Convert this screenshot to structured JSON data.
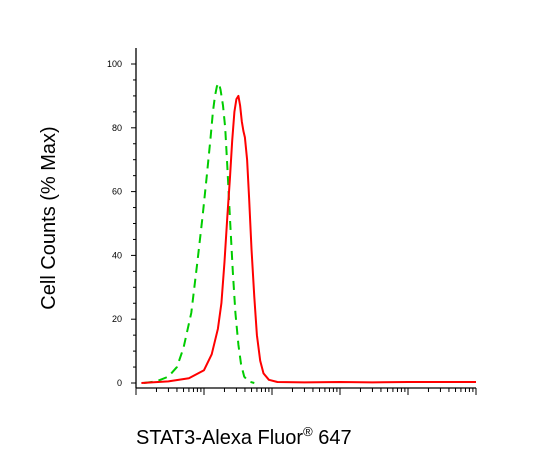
{
  "chart_data": {
    "type": "line",
    "title": "",
    "xlabel": "STAT3-Alexa Fluor",
    "xlabel_superscript": "®",
    "xlabel_suffix": " 647",
    "ylabel": "Cell Counts (% Max)",
    "xscale": "log",
    "xlim": [
      1,
      100000
    ],
    "ylim": [
      0,
      100
    ],
    "yticks": [
      "0",
      "20",
      "40",
      "60",
      "80",
      "100"
    ],
    "grid": false,
    "legend": "none",
    "series": [
      {
        "color": "#00cc00",
        "style": "dashed",
        "points": [
          [
            1.3,
            0
          ],
          [
            2,
            0.5
          ],
          [
            3,
            2
          ],
          [
            4,
            5
          ],
          [
            5,
            11
          ],
          [
            6.5,
            22
          ],
          [
            8,
            38
          ],
          [
            9.5,
            52
          ],
          [
            11,
            65
          ],
          [
            12.5,
            77
          ],
          [
            13.5,
            85
          ],
          [
            14.5,
            90
          ],
          [
            15.5,
            93
          ],
          [
            16.5,
            94
          ],
          [
            17.5,
            92
          ],
          [
            19,
            87
          ],
          [
            20.5,
            80
          ],
          [
            22,
            68
          ],
          [
            24,
            52
          ],
          [
            26.5,
            35
          ],
          [
            29,
            22
          ],
          [
            32,
            12
          ],
          [
            35,
            6
          ],
          [
            39,
            2
          ],
          [
            45,
            0.5
          ],
          [
            55,
            0
          ]
        ]
      },
      {
        "color": "#ff0000",
        "style": "solid",
        "points": [
          [
            1.2,
            0
          ],
          [
            3,
            0.5
          ],
          [
            6,
            1.5
          ],
          [
            10,
            4
          ],
          [
            13,
            9
          ],
          [
            16,
            17
          ],
          [
            18,
            25
          ],
          [
            20,
            38
          ],
          [
            22,
            52
          ],
          [
            24,
            64
          ],
          [
            26,
            76
          ],
          [
            28,
            85
          ],
          [
            30,
            89
          ],
          [
            32,
            90
          ],
          [
            34,
            87
          ],
          [
            36,
            82
          ],
          [
            38,
            79
          ],
          [
            40,
            77
          ],
          [
            43,
            70
          ],
          [
            46,
            58
          ],
          [
            50,
            42
          ],
          [
            55,
            27
          ],
          [
            60,
            15
          ],
          [
            67,
            7
          ],
          [
            75,
            3
          ],
          [
            90,
            1
          ],
          [
            120,
            0.3
          ],
          [
            300,
            0.2
          ],
          [
            1000,
            0.3
          ],
          [
            3000,
            0.2
          ],
          [
            10000,
            0.3
          ],
          [
            100000,
            0.3
          ]
        ]
      }
    ]
  }
}
